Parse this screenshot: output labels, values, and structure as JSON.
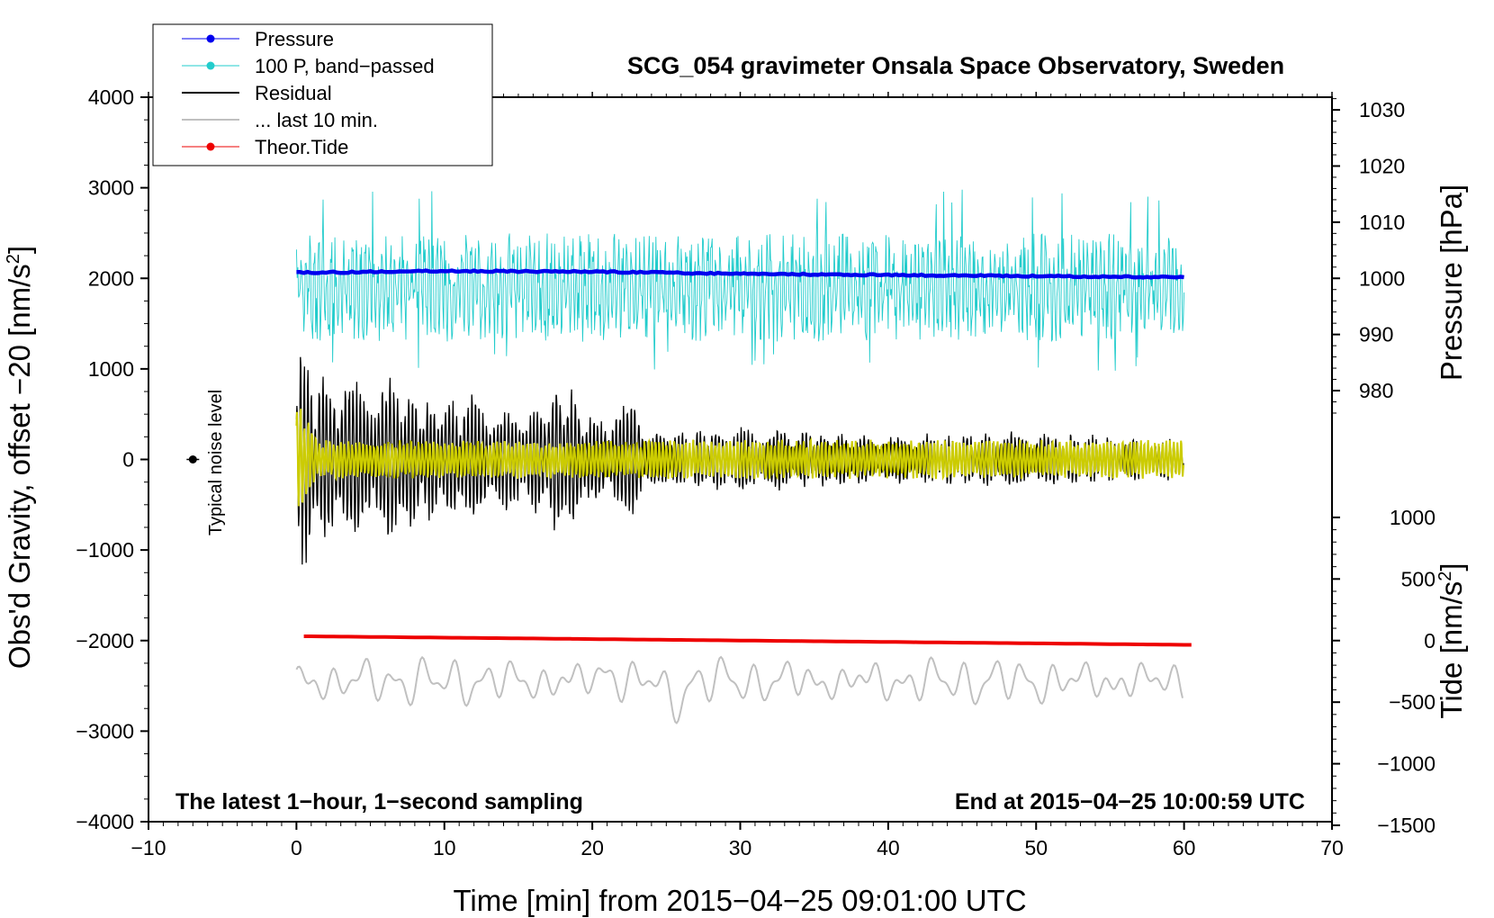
{
  "chart_data": {
    "type": "line",
    "title": "SCG_054 gravimeter Onsala Space Observatory, Sweden",
    "xlabel": "Time [min] from 2015−04−25 09:01:00 UTC",
    "ylabel_left": "Obs'd Gravity, offset −20 [nm/s",
    "ylabel_left_sup": "2",
    "ylabel_left_close": "]",
    "ylabel_right_top": "Pressure [hPa]",
    "ylabel_right_bottom": "Tide [nm/s",
    "ylabel_right_bottom_sup": "2",
    "ylabel_right_bottom_close": "]",
    "xlim": [
      -10,
      70
    ],
    "ylim_left": [
      -4000,
      4000
    ],
    "xticks": [
      -10,
      0,
      10,
      20,
      30,
      40,
      50,
      60,
      70
    ],
    "xtick_labels": [
      "−10",
      "0",
      "10",
      "20",
      "30",
      "40",
      "50",
      "60",
      "70"
    ],
    "yticks_left": [
      4000,
      3000,
      2000,
      1000,
      0,
      -1000,
      -2000,
      -3000,
      -4000
    ],
    "ytick_labels_left": [
      "4000",
      "3000",
      "2000",
      "1000",
      "0",
      "−1000",
      "−2000",
      "−3000",
      "−4000"
    ],
    "pressure_axis": {
      "ticks": [
        1030,
        1020,
        1010,
        1000,
        990,
        980
      ],
      "tick_labels": [
        "1030",
        "1020",
        "1010",
        "1000",
        "990",
        "980"
      ],
      "gravity_equiv_of_1000hPa": 2000,
      "gravity_per_hPa": 62
    },
    "tide_axis": {
      "ticks": [
        1000,
        500,
        0,
        -500,
        -1000,
        -1500
      ],
      "tick_labels": [
        "1000",
        "500",
        "0",
        "−500",
        "−1000",
        "−1500"
      ],
      "gravity_equiv_of_0": -2000,
      "gravity_per_unit": 1.36
    },
    "annotation_left": "The latest 1−hour, 1−second sampling",
    "annotation_right": "End at 2015−04−25 10:00:59 UTC",
    "noise_label": "Typical noise level",
    "noise_marker": {
      "x": -7,
      "y": 0
    },
    "legend": [
      {
        "label": "Pressure",
        "color": "#0000ee",
        "marker": true
      },
      {
        "label": "100 P, band−passed",
        "color": "#22cccc",
        "marker": true
      },
      {
        "label": "Residual",
        "color": "#000000",
        "marker": false
      },
      {
        "label": "... last 10 min.",
        "color": "#c0c0c0",
        "marker": false
      },
      {
        "label": "Theor.Tide",
        "color": "#ee0000",
        "marker": true
      }
    ],
    "series": [
      {
        "name": "Pressure",
        "axis": "pressure",
        "color": "#0000ee",
        "x": [
          0,
          10,
          20,
          30,
          40,
          50,
          60
        ],
        "values": [
          1001.0,
          1001.3,
          1001.2,
          1000.8,
          1000.6,
          1000.4,
          1000.2
        ]
      },
      {
        "name": "100 P, band-passed",
        "axis": "gravity",
        "color": "#22cccc",
        "x_range": [
          0,
          60
        ],
        "center": 1900,
        "typical_range": [
          1300,
          2500
        ],
        "extremes": [
          950,
          3000
        ]
      },
      {
        "name": "Residual",
        "axis": "gravity",
        "color": "#000000",
        "x_range": [
          0,
          60
        ],
        "envelope_x": [
          0,
          0.5,
          1,
          2,
          3,
          4,
          7,
          8,
          10,
          12,
          14,
          16,
          18,
          19,
          20,
          23,
          24,
          30,
          40,
          50,
          60
        ],
        "envelope_amp": [
          1500,
          1200,
          1000,
          850,
          1000,
          800,
          900,
          700,
          650,
          700,
          550,
          550,
          900,
          700,
          450,
          650,
          300,
          350,
          250,
          300,
          200
        ]
      },
      {
        "name": "Residual (yellow overlay)",
        "axis": "gravity",
        "color": "#cccc00",
        "x_range": [
          0,
          60
        ],
        "typical_amp": 200
      },
      {
        "name": "... last 10 min.",
        "axis": "gravity",
        "color": "#c0c0c0",
        "x_range": [
          0,
          60
        ],
        "center": -2450,
        "typical_range": [
          -2750,
          -2100
        ],
        "extremes": [
          -2950,
          -2050
        ]
      },
      {
        "name": "Theor.Tide",
        "axis": "tide",
        "color": "#ee0000",
        "x": [
          0.5,
          60.5
        ],
        "values": [
          35,
          -35
        ]
      }
    ]
  }
}
